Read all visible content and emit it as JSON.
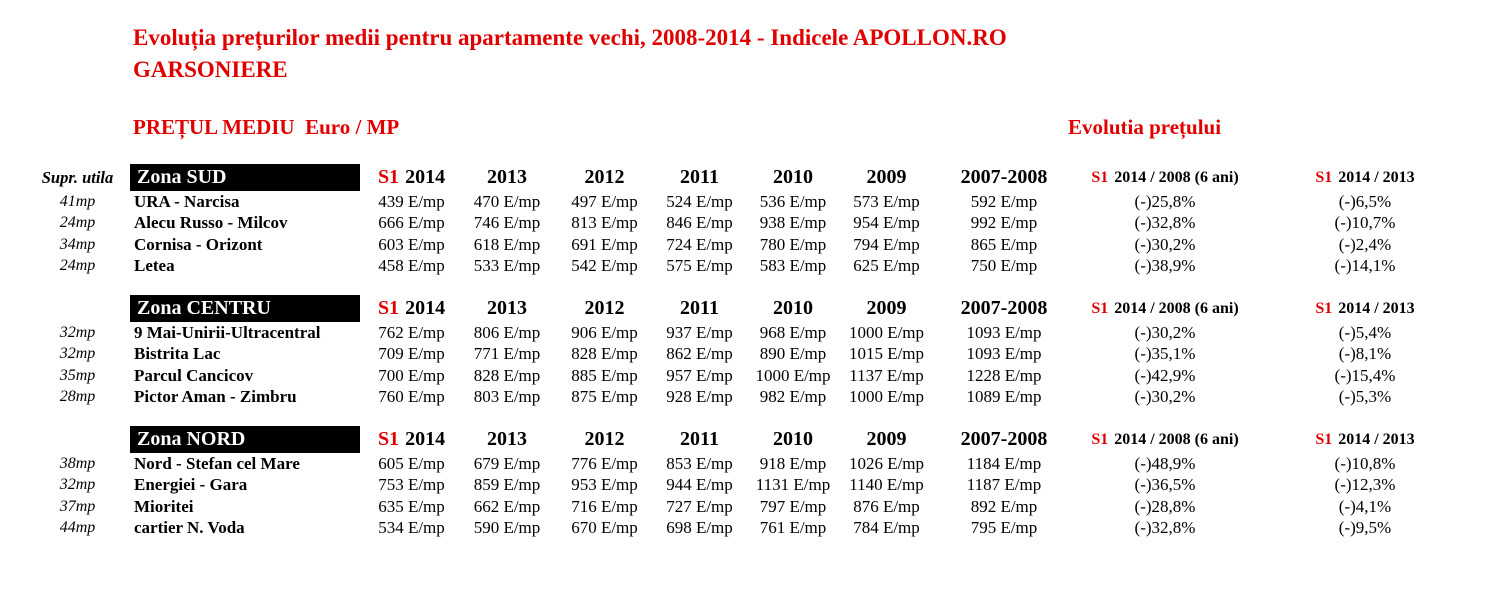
{
  "title": {
    "line1": "Evoluția prețurilor medii pentru apartamente vechi, 2008-2014 - Indicele APOLLON.RO",
    "line2": "GARSONIERE"
  },
  "headings": {
    "price": "PREȚUL MEDIU  Euro / MP",
    "evolution": "Evolutia prețului"
  },
  "colors": {
    "accent_red": "#e00000",
    "zone_bar_bg": "#000000",
    "zone_bar_fg": "#ffffff"
  },
  "table_header": {
    "supr_label": "Supr. utila",
    "s1": "S1",
    "col_s1_year": "2014",
    "years": [
      "2013",
      "2012",
      "2011",
      "2010",
      "2009"
    ],
    "col_2007_2008": "2007-2008",
    "ratio_6ani": "2014 / 2008 (6 ani)",
    "ratio_2013": "2014 / 2013"
  },
  "sections": [
    {
      "zone": "Zona SUD",
      "rows": [
        {
          "supr": "41mp",
          "name": "URA - Narcisa",
          "prices": [
            "439 E/mp",
            "470 E/mp",
            "497 E/mp",
            "524 E/mp",
            "536 E/mp",
            "573 E/mp",
            "592 E/mp"
          ],
          "ratio_6ani": "(-)25,8%",
          "ratio_2013": "(-)6,5%"
        },
        {
          "supr": "24mp",
          "name": "Alecu Russo - Milcov",
          "prices": [
            "666 E/mp",
            "746 E/mp",
            "813 E/mp",
            "846 E/mp",
            "938 E/mp",
            "954 E/mp",
            "992 E/mp"
          ],
          "ratio_6ani": "(-)32,8%",
          "ratio_2013": "(-)10,7%"
        },
        {
          "supr": "34mp",
          "name": "Cornisa - Orizont",
          "prices": [
            "603 E/mp",
            "618 E/mp",
            "691 E/mp",
            "724 E/mp",
            "780 E/mp",
            "794 E/mp",
            "865 E/mp"
          ],
          "ratio_6ani": "(-)30,2%",
          "ratio_2013": "(-)2,4%"
        },
        {
          "supr": "24mp",
          "name": "Letea",
          "prices": [
            "458 E/mp",
            "533 E/mp",
            "542 E/mp",
            "575 E/mp",
            "583 E/mp",
            "625 E/mp",
            "750 E/mp"
          ],
          "ratio_6ani": "(-)38,9%",
          "ratio_2013": "(-)14,1%"
        }
      ]
    },
    {
      "zone": "Zona CENTRU",
      "rows": [
        {
          "supr": "32mp",
          "name": "9 Mai-Unirii-Ultracentral",
          "prices": [
            "762 E/mp",
            "806 E/mp",
            "906 E/mp",
            "937 E/mp",
            "968 E/mp",
            "1000 E/mp",
            "1093 E/mp"
          ],
          "ratio_6ani": "(-)30,2%",
          "ratio_2013": "(-)5,4%"
        },
        {
          "supr": "32mp",
          "name": "Bistrita Lac",
          "prices": [
            "709 E/mp",
            "771 E/mp",
            "828 E/mp",
            "862 E/mp",
            "890 E/mp",
            "1015 E/mp",
            "1093 E/mp"
          ],
          "ratio_6ani": "(-)35,1%",
          "ratio_2013": "(-)8,1%"
        },
        {
          "supr": "35mp",
          "name": "Parcul Cancicov",
          "prices": [
            "700 E/mp",
            "828 E/mp",
            "885 E/mp",
            "957 E/mp",
            "1000 E/mp",
            "1137 E/mp",
            "1228 E/mp"
          ],
          "ratio_6ani": "(-)42,9%",
          "ratio_2013": "(-)15,4%"
        },
        {
          "supr": "28mp",
          "name": "Pictor Aman - Zimbru",
          "prices": [
            "760 E/mp",
            "803 E/mp",
            "875 E/mp",
            "928 E/mp",
            "982 E/mp",
            "1000 E/mp",
            "1089 E/mp"
          ],
          "ratio_6ani": "(-)30,2%",
          "ratio_2013": "(-)5,3%"
        }
      ]
    },
    {
      "zone": "Zona NORD",
      "rows": [
        {
          "supr": "38mp",
          "name": "Nord - Stefan cel Mare",
          "prices": [
            "605 E/mp",
            "679 E/mp",
            "776 E/mp",
            "853 E/mp",
            "918 E/mp",
            "1026 E/mp",
            "1184 E/mp"
          ],
          "ratio_6ani": "(-)48,9%",
          "ratio_2013": "(-)10,8%"
        },
        {
          "supr": "32mp",
          "name": "Energiei - Gara",
          "prices": [
            "753 E/mp",
            "859 E/mp",
            "953 E/mp",
            "944 E/mp",
            "1131 E/mp",
            "1140 E/mp",
            "1187 E/mp"
          ],
          "ratio_6ani": "(-)36,5%",
          "ratio_2013": "(-)12,3%"
        },
        {
          "supr": "37mp",
          "name": "Mioritei",
          "prices": [
            "635 E/mp",
            "662 E/mp",
            "716 E/mp",
            "727 E/mp",
            "797 E/mp",
            "876 E/mp",
            "892 E/mp"
          ],
          "ratio_6ani": "(-)28,8%",
          "ratio_2013": "(-)4,1%"
        },
        {
          "supr": "44mp",
          "name": "cartier N. Voda",
          "prices": [
            "534 E/mp",
            "590 E/mp",
            "670 E/mp",
            "698 E/mp",
            "761 E/mp",
            "784 E/mp",
            "795 E/mp"
          ],
          "ratio_6ani": "(-)32,8%",
          "ratio_2013": "(-)9,5%"
        }
      ]
    }
  ]
}
